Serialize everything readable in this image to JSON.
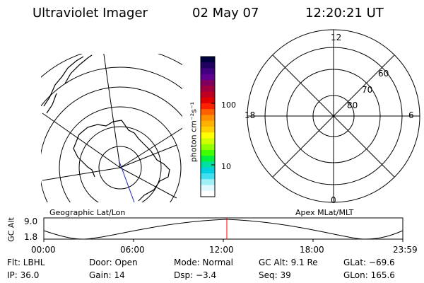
{
  "header": {
    "title": "Ultraviolet Imager",
    "date": "02 May 07",
    "time": "12:20:21 UT"
  },
  "left_panel": {
    "caption": "Geographic Lat/Lon"
  },
  "right_panel": {
    "caption": "Apex MLat/MLT",
    "mlt_labels": {
      "top": "12",
      "left": "18",
      "right": "6",
      "bottom": "0"
    },
    "lat_labels": [
      "60",
      "70",
      "80"
    ]
  },
  "colorbar": {
    "axis_label": "photon cm⁻²s⁻¹",
    "ticks": [
      "100",
      "10"
    ],
    "colors": [
      "#000040",
      "#200060",
      "#400080",
      "#600090",
      "#800060",
      "#a00040",
      "#c00020",
      "#e00000",
      "#ff2000",
      "#ff6000",
      "#ff9000",
      "#ffb000",
      "#ffd000",
      "#ffff00",
      "#d0ff00",
      "#90ff00",
      "#40ff00",
      "#00f040",
      "#00e0a0",
      "#00d0e0",
      "#40e0f0",
      "#a0f0f8",
      "#e0f8ff",
      "#ffffff"
    ]
  },
  "altitude_plot": {
    "ylabel": "GC Alt",
    "ytick_top": "9.0",
    "ytick_bottom": "1.8",
    "xticks": [
      "00:00",
      "06:00",
      "12:00",
      "18:00",
      "23:59"
    ]
  },
  "status": {
    "filter": "Flt: LBHL",
    "door": "Door: Open",
    "mode": "Mode: Normal",
    "gc_alt": "GC Alt: 9.1 Re",
    "glat": "GLat: −69.6",
    "ip": "IP: 36.0",
    "gain": "Gain: 14",
    "dsp": "Dsp:    −3.4",
    "seq": "Seq: 39",
    "glon": "GLon: 165.6"
  }
}
